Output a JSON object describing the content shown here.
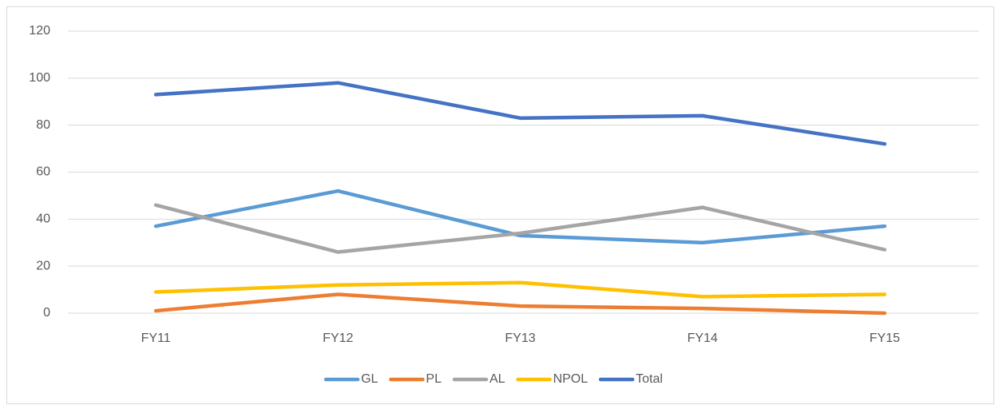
{
  "chart_data": {
    "type": "line",
    "categories": [
      "FY11",
      "FY12",
      "FY13",
      "FY14",
      "FY15"
    ],
    "series": [
      {
        "name": "GL",
        "color": "#5b9bd5",
        "values": [
          37,
          52,
          33,
          30,
          37
        ]
      },
      {
        "name": "PL",
        "color": "#ed7d31",
        "values": [
          1,
          8,
          3,
          2,
          0
        ]
      },
      {
        "name": "AL",
        "color": "#a5a5a5",
        "values": [
          46,
          26,
          34,
          45,
          27
        ]
      },
      {
        "name": "NPOL",
        "color": "#ffc000",
        "values": [
          9,
          12,
          13,
          7,
          8
        ]
      },
      {
        "name": "Total",
        "color": "#4472c4",
        "values": [
          93,
          98,
          83,
          84,
          72
        ]
      }
    ],
    "ylim": [
      0,
      120
    ],
    "yticks": [
      0,
      20,
      40,
      60,
      80,
      100,
      120
    ],
    "grid": true,
    "legend": "bottom"
  }
}
